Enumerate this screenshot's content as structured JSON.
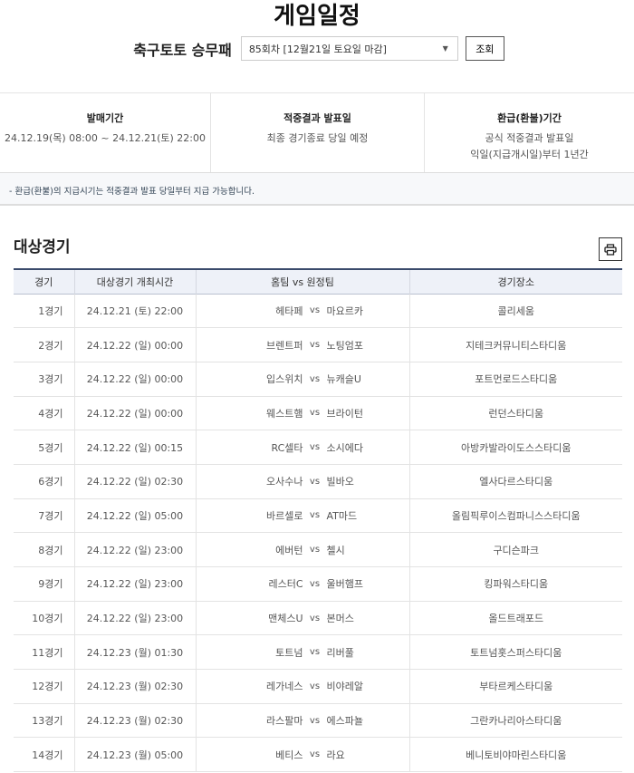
{
  "header": {
    "title": "게임일정",
    "game_label": "축구토토 승무패",
    "round_selected": "85회차 [12월21일 토요일 마감]",
    "search_button": "조회"
  },
  "info": [
    {
      "heading": "발매기간",
      "lines": [
        "24.12.19(목) 08:00 ~ 24.12.21(토) 22:00"
      ]
    },
    {
      "heading": "적중결과 발표일",
      "lines": [
        "최종 경기종료 당일 예정"
      ]
    },
    {
      "heading": "환급(환불)기간",
      "lines": [
        "공식 적중결과 발표일",
        "익일(지급개시일)부터 1년간"
      ]
    }
  ],
  "note": "- 환급(환불)의 지급시기는 적중결과 발표 당일부터 지급 가능합니다.",
  "section_title": "대상경기",
  "table": {
    "headers": [
      "경기",
      "대상경기 개최시간",
      "홈팀 vs 원정팀",
      "경기장소"
    ],
    "vs": "vs",
    "rows": [
      {
        "no": "1경기",
        "time": "24.12.21 (토) 22:00",
        "home": "헤타페",
        "away": "마요르카",
        "venue": "콜리세움"
      },
      {
        "no": "2경기",
        "time": "24.12.22 (일) 00:00",
        "home": "브렌트퍼",
        "away": "노팅엄포",
        "venue": "지테크커뮤니티스타디움"
      },
      {
        "no": "3경기",
        "time": "24.12.22 (일) 00:00",
        "home": "입스위치",
        "away": "뉴캐슬U",
        "venue": "포트먼로드스타디움"
      },
      {
        "no": "4경기",
        "time": "24.12.22 (일) 00:00",
        "home": "웨스트햄",
        "away": "브라이턴",
        "venue": "런던스타디움"
      },
      {
        "no": "5경기",
        "time": "24.12.22 (일) 00:15",
        "home": "RC셀타",
        "away": "소시에다",
        "venue": "아방카발라이도스스타디움"
      },
      {
        "no": "6경기",
        "time": "24.12.22 (일) 02:30",
        "home": "오사수나",
        "away": "빌바오",
        "venue": "엘사다르스타디움"
      },
      {
        "no": "7경기",
        "time": "24.12.22 (일) 05:00",
        "home": "바르셀로",
        "away": "AT마드",
        "venue": "올림픽루이스컴파니스스타디움"
      },
      {
        "no": "8경기",
        "time": "24.12.22 (일) 23:00",
        "home": "에버턴",
        "away": "첼시",
        "venue": "구디슨파크"
      },
      {
        "no": "9경기",
        "time": "24.12.22 (일) 23:00",
        "home": "레스터C",
        "away": "울버햄프",
        "venue": "킹파워스타디움"
      },
      {
        "no": "10경기",
        "time": "24.12.22 (일) 23:00",
        "home": "맨체스U",
        "away": "본머스",
        "venue": "올드트래포드"
      },
      {
        "no": "11경기",
        "time": "24.12.23 (월) 01:30",
        "home": "토트넘",
        "away": "리버풀",
        "venue": "토트넘홋스퍼스타디움"
      },
      {
        "no": "12경기",
        "time": "24.12.23 (월) 02:30",
        "home": "레가네스",
        "away": "비야레알",
        "venue": "부타르케스타디움"
      },
      {
        "no": "13경기",
        "time": "24.12.23 (월) 02:30",
        "home": "라스팔마",
        "away": "에스파뇰",
        "venue": "그란카나리아스타디움"
      },
      {
        "no": "14경기",
        "time": "24.12.23 (월) 05:00",
        "home": "베티스",
        "away": "라요",
        "venue": "베니토비야마린스타디움"
      }
    ]
  }
}
